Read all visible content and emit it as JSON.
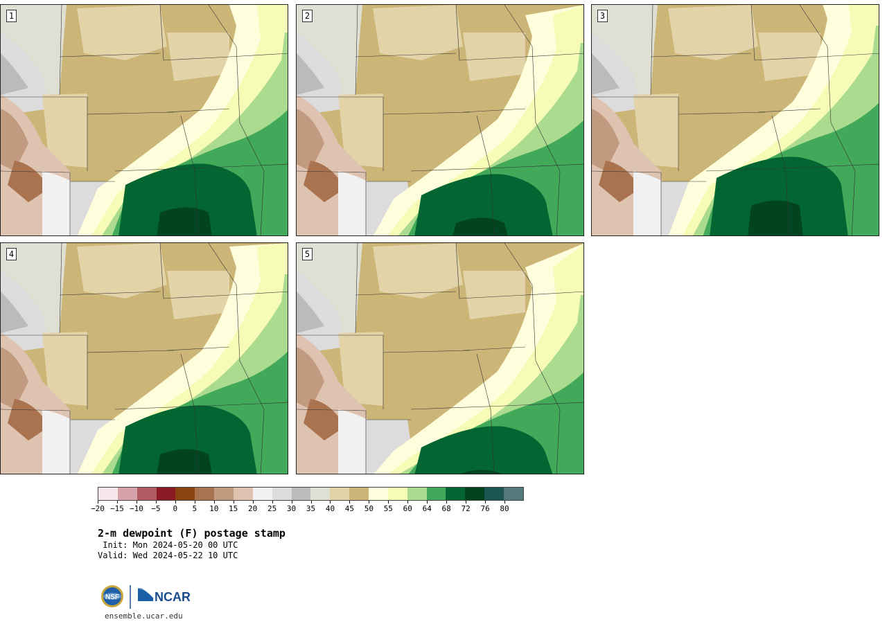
{
  "panels": [
    {
      "label": "1"
    },
    {
      "label": "2"
    },
    {
      "label": "3"
    },
    {
      "label": "4"
    },
    {
      "label": "5"
    }
  ],
  "colorbar": {
    "colors": [
      "#f6e8ea",
      "#d4a2a8",
      "#b05a62",
      "#8c1a24",
      "#8a4412",
      "#aa7350",
      "#c29a80",
      "#dec3b0",
      "#f1f1f1",
      "#dcdcdc",
      "#bbbbbb",
      "#dfdfd3",
      "#e3d3a8",
      "#cbb677",
      "#fffedc",
      "#f6fbb6",
      "#aadb8e",
      "#42a85a",
      "#036632",
      "#034420",
      "#1d5553",
      "#54787c"
    ],
    "tick_labels": [
      "−20",
      "−15",
      "−10",
      "−5",
      "0",
      "5",
      "10",
      "15",
      "20",
      "25",
      "30",
      "35",
      "40",
      "45",
      "50",
      "55",
      "60",
      "64",
      "68",
      "72",
      "76",
      "80"
    ]
  },
  "title": "2-m dewpoint (F) postage stamp",
  "init": " Init: Mon 2024-05-20 00 UTC",
  "valid": "Valid: Wed 2024-05-22 10 UTC",
  "logos": {
    "nsf": "NSF",
    "ncar": "NCAR"
  },
  "site": "ensemble.ucar.edu"
}
